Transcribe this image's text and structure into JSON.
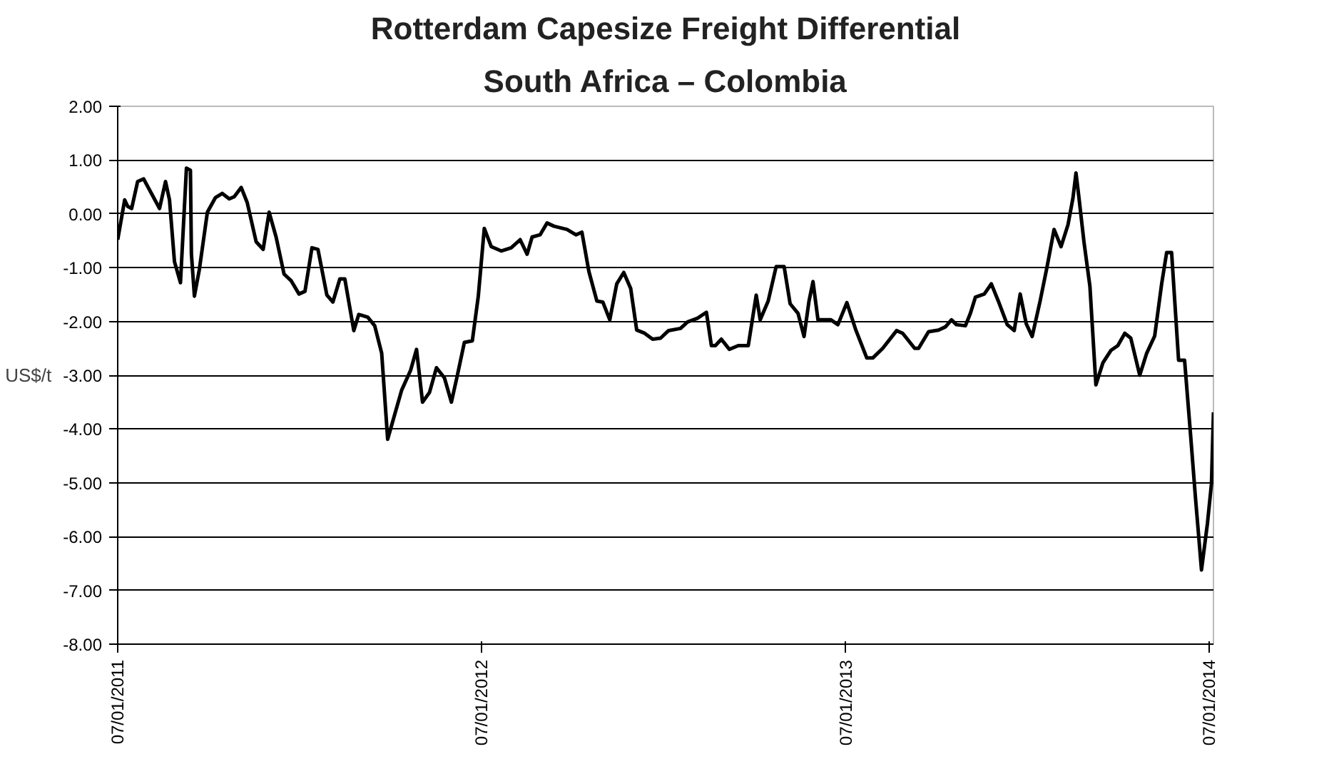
{
  "chart_data": {
    "type": "line",
    "title": "Rotterdam Capesize Freight Differential",
    "subtitle": "South Africa – Colombia",
    "ylabel": "US$/t",
    "xlim": [
      "2011-01-07",
      "2014-01-11"
    ],
    "ylim": [
      -8,
      2
    ],
    "xticks": [
      {
        "value": "2011-01-07",
        "label": "07/01/2011"
      },
      {
        "value": "2012-01-07",
        "label": "07/01/2012"
      },
      {
        "value": "2013-01-07",
        "label": "07/01/2013"
      },
      {
        "value": "2014-01-07",
        "label": "07/01/2014"
      }
    ],
    "yticks": [
      {
        "value": 2,
        "label": "2.00"
      },
      {
        "value": 1,
        "label": "1.00"
      },
      {
        "value": 0,
        "label": "0.00"
      },
      {
        "value": -1,
        "label": "-1.00"
      },
      {
        "value": -2,
        "label": "-2.00"
      },
      {
        "value": -3,
        "label": "-3.00"
      },
      {
        "value": -4,
        "label": "-4.00"
      },
      {
        "value": -5,
        "label": "-5.00"
      },
      {
        "value": -6,
        "label": "-6.00"
      },
      {
        "value": -7,
        "label": "-7.00"
      },
      {
        "value": -8,
        "label": "-8.00"
      }
    ],
    "grid": "y",
    "marker": "none",
    "line_style": "solid",
    "series": [
      {
        "color": "#000000",
        "x": [
          "2011-01-07",
          "2011-01-14",
          "2011-01-17",
          "2011-01-21",
          "2011-01-27",
          "2011-02-02",
          "2011-02-18",
          "2011-02-24",
          "2011-02-28",
          "2011-03-05",
          "2011-03-11",
          "2011-03-17",
          "2011-03-21",
          "2011-03-22",
          "2011-03-25",
          "2011-03-30",
          "2011-04-07",
          "2011-04-15",
          "2011-04-22",
          "2011-04-29",
          "2011-05-04",
          "2011-05-11",
          "2011-05-17",
          "2011-05-26",
          "2011-06-02",
          "2011-06-08",
          "2011-06-15",
          "2011-06-23",
          "2011-06-30",
          "2011-07-08",
          "2011-07-14",
          "2011-07-21",
          "2011-07-27",
          "2011-08-05",
          "2011-08-11",
          "2011-08-18",
          "2011-08-23",
          "2011-09-01",
          "2011-09-06",
          "2011-09-15",
          "2011-09-22",
          "2011-09-29",
          "2011-10-05",
          "2011-10-19",
          "2011-10-28",
          "2011-11-03",
          "2011-11-09",
          "2011-11-16",
          "2011-11-23",
          "2011-12-01",
          "2011-12-08",
          "2011-12-14",
          "2011-12-21",
          "2011-12-29",
          "2012-01-04",
          "2012-01-10",
          "2012-01-17",
          "2012-01-27",
          "2012-02-06",
          "2012-02-15",
          "2012-02-22",
          "2012-02-27",
          "2012-03-06",
          "2012-03-13",
          "2012-03-20",
          "2012-04-02",
          "2012-04-11",
          "2012-04-17",
          "2012-04-24",
          "2012-05-02",
          "2012-05-08",
          "2012-05-15",
          "2012-05-22",
          "2012-05-29",
          "2012-06-05",
          "2012-06-11",
          "2012-06-19",
          "2012-06-27",
          "2012-07-05",
          "2012-07-13",
          "2012-07-25",
          "2012-08-01",
          "2012-08-11",
          "2012-08-20",
          "2012-08-25",
          "2012-08-29",
          "2012-09-04",
          "2012-09-12",
          "2012-09-21",
          "2012-10-01",
          "2012-10-09",
          "2012-10-13",
          "2012-10-21",
          "2012-10-29",
          "2012-11-06",
          "2012-11-12",
          "2012-11-20",
          "2012-11-26",
          "2012-12-01",
          "2012-12-05",
          "2012-12-10",
          "2012-12-23",
          "2012-12-30",
          "2013-01-08",
          "2013-01-17",
          "2013-01-28",
          "2013-02-03",
          "2013-02-13",
          "2013-02-27",
          "2013-03-05",
          "2013-03-17",
          "2013-03-21",
          "2013-03-31",
          "2013-04-10",
          "2013-04-17",
          "2013-04-23",
          "2013-04-28",
          "2013-05-07",
          "2013-05-12",
          "2013-05-17",
          "2013-05-26",
          "2013-06-02",
          "2013-06-09",
          "2013-06-18",
          "2013-06-25",
          "2013-07-01",
          "2013-07-07",
          "2013-07-13",
          "2013-07-21",
          "2013-07-28",
          "2013-08-04",
          "2013-08-11",
          "2013-08-18",
          "2013-08-23",
          "2013-08-26",
          "2013-08-29",
          "2013-09-03",
          "2013-09-09",
          "2013-09-15",
          "2013-09-22",
          "2013-09-30",
          "2013-10-07",
          "2013-10-14",
          "2013-10-20",
          "2013-10-29",
          "2013-11-05",
          "2013-11-13",
          "2013-11-20",
          "2013-11-25",
          "2013-11-30",
          "2013-12-07",
          "2013-12-13",
          "2013-12-19",
          "2013-12-24",
          "2013-12-30",
          "2014-01-05",
          "2014-01-09",
          "2014-01-11"
        ],
        "values": [
          -0.48,
          0.26,
          0.14,
          0.1,
          0.6,
          0.65,
          0.1,
          0.6,
          0.26,
          -0.89,
          -1.28,
          0.85,
          0.81,
          -0.75,
          -1.53,
          -1.03,
          0.03,
          0.3,
          0.38,
          0.28,
          0.32,
          0.49,
          0.21,
          -0.52,
          -0.66,
          0.03,
          -0.43,
          -1.12,
          -1.24,
          -1.49,
          -1.44,
          -0.63,
          -0.66,
          -1.51,
          -1.64,
          -1.21,
          -1.21,
          -2.17,
          -1.87,
          -1.92,
          -2.08,
          -2.59,
          -4.19,
          -3.28,
          -2.91,
          -2.52,
          -3.5,
          -3.32,
          -2.86,
          -3.05,
          -3.5,
          -3.0,
          -2.39,
          -2.36,
          -1.53,
          -0.27,
          -0.61,
          -0.69,
          -0.63,
          -0.48,
          -0.75,
          -0.43,
          -0.39,
          -0.17,
          -0.23,
          -0.29,
          -0.39,
          -0.34,
          -1.07,
          -1.62,
          -1.64,
          -1.97,
          -1.3,
          -1.09,
          -1.39,
          -2.16,
          -2.22,
          -2.33,
          -2.31,
          -2.17,
          -2.13,
          -2.01,
          -1.94,
          -1.83,
          -2.45,
          -2.45,
          -2.33,
          -2.52,
          -2.45,
          -2.45,
          -1.51,
          -1.97,
          -1.62,
          -0.98,
          -0.98,
          -1.67,
          -1.85,
          -2.28,
          -1.62,
          -1.26,
          -1.97,
          -1.97,
          -2.06,
          -1.65,
          -2.16,
          -2.68,
          -2.68,
          -2.5,
          -2.17,
          -2.22,
          -2.5,
          -2.5,
          -2.19,
          -2.16,
          -2.1,
          -1.97,
          -2.06,
          -2.08,
          -1.85,
          -1.55,
          -1.49,
          -1.3,
          -1.62,
          -2.06,
          -2.17,
          -1.49,
          -2.04,
          -2.28,
          -1.62,
          -0.98,
          -0.29,
          -0.61,
          -0.2,
          0.3,
          0.76,
          0.3,
          -0.52,
          -1.35,
          -3.18,
          -2.77,
          -2.54,
          -2.45,
          -2.22,
          -2.31,
          -3.0,
          -2.59,
          -2.27,
          -1.3,
          -0.72,
          -0.72,
          -2.72,
          -2.72,
          -4.1,
          -5.29,
          -6.62,
          -5.75,
          -5.02,
          -3.69
        ]
      }
    ]
  }
}
